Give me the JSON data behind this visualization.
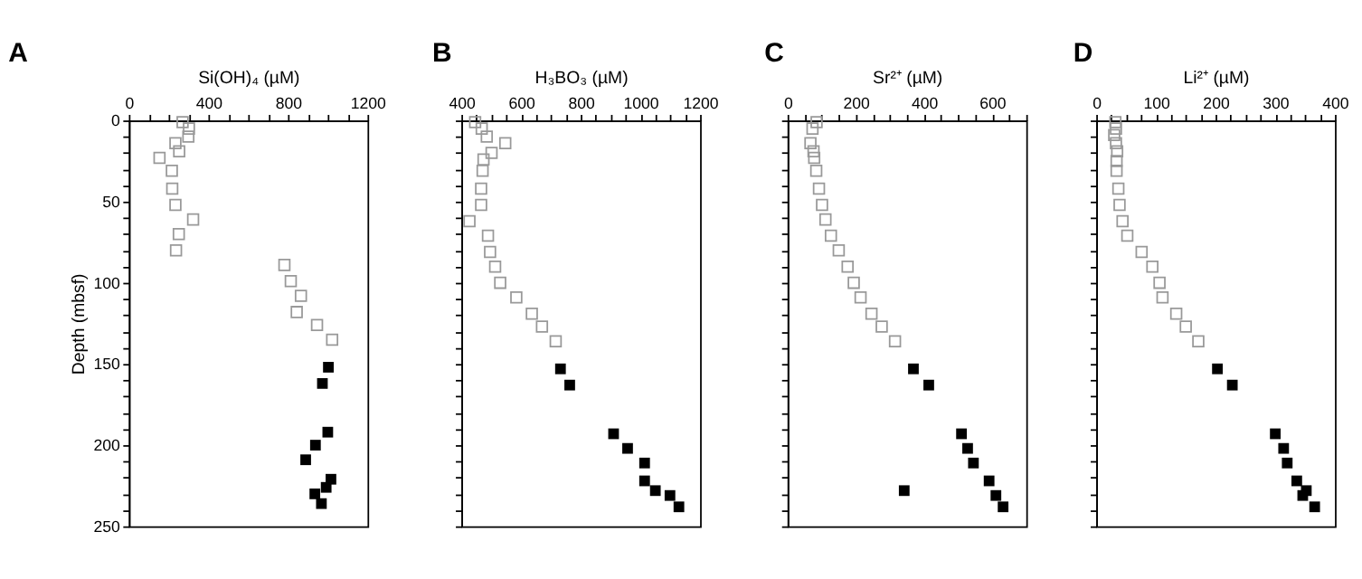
{
  "chart_data": [
    {
      "type": "scatter",
      "title": "A",
      "xlabel": "Si(OH)₄ (µM)",
      "ylabel": "Depth (mbsf)",
      "xlim": [
        0,
        1200
      ],
      "xticks": [
        0,
        {
          "value": 100,
          "label": null
        },
        {
          "value": 200,
          "label": null
        },
        {
          "value": 300,
          "label": null
        },
        400,
        {
          "value": 500,
          "label": null
        },
        {
          "value": 600,
          "label": null
        },
        {
          "value": 700,
          "label": null
        },
        800,
        {
          "value": 900,
          "label": null
        },
        {
          "value": 1000,
          "label": null
        },
        {
          "value": 1100,
          "label": null
        },
        1200
      ],
      "ylim": [
        250,
        0
      ],
      "yticks": [
        0,
        {
          "value": 10,
          "label": null
        },
        {
          "value": 20,
          "label": null
        },
        {
          "value": 30,
          "label": null
        },
        {
          "value": 40,
          "label": null
        },
        50,
        {
          "value": 60,
          "label": null
        },
        {
          "value": 70,
          "label": null
        },
        {
          "value": 80,
          "label": null
        },
        {
          "value": 90,
          "label": null
        },
        100,
        {
          "value": 110,
          "label": null
        },
        {
          "value": 120,
          "label": null
        },
        {
          "value": 130,
          "label": null
        },
        {
          "value": 140,
          "label": null
        },
        150,
        {
          "value": 160,
          "label": null
        },
        {
          "value": 170,
          "label": null
        },
        {
          "value": 180,
          "label": null
        },
        {
          "value": 190,
          "label": null
        },
        200,
        {
          "value": 210,
          "label": null
        },
        {
          "value": 220,
          "label": null
        },
        {
          "value": 230,
          "label": null
        },
        {
          "value": 240,
          "label": null
        },
        250
      ],
      "marker": "square",
      "series": [
        {
          "color": "#999999",
          "x": [
            270,
            302,
            299,
            234,
            253,
            154,
            216,
            218,
            234,
            323,
            251,
            237,
            782,
            814,
            865,
            844,
            946,
            1022
          ],
          "values": [
            1,
            5,
            10,
            14,
            19,
            23,
            31,
            42,
            52,
            61,
            70,
            80,
            89,
            99,
            108,
            118,
            126,
            135
          ]
        },
        {
          "color": "#000000",
          "x": [
            1003,
            973,
            1000,
            938,
            889,
            1016,
            992,
            935,
            968
          ],
          "values": [
            152,
            162,
            192,
            200,
            209,
            221,
            226,
            230,
            236
          ]
        }
      ]
    },
    {
      "type": "scatter",
      "title": "B",
      "xlabel": "H₃BO₃ (µM)",
      "xlim": [
        400,
        1200
      ],
      "xticks": [
        400,
        {
          "value": 450,
          "label": null
        },
        {
          "value": 500,
          "label": null
        },
        {
          "value": 550,
          "label": null
        },
        600,
        {
          "value": 650,
          "label": null
        },
        {
          "value": 700,
          "label": null
        },
        {
          "value": 750,
          "label": null
        },
        800,
        {
          "value": 850,
          "label": null
        },
        {
          "value": 900,
          "label": null
        },
        {
          "value": 950,
          "label": null
        },
        1000,
        {
          "value": 1050,
          "label": null
        },
        {
          "value": 1100,
          "label": null
        },
        {
          "value": 1150,
          "label": null
        },
        1200
      ],
      "ylim": [
        250,
        0
      ],
      "yticks": [
        0,
        {
          "value": 10,
          "label": null
        },
        {
          "value": 20,
          "label": null
        },
        {
          "value": 30,
          "label": null
        },
        {
          "value": 40,
          "label": null
        },
        50,
        {
          "value": 60,
          "label": null
        },
        {
          "value": 70,
          "label": null
        },
        {
          "value": 80,
          "label": null
        },
        {
          "value": 90,
          "label": null
        },
        100,
        {
          "value": 110,
          "label": null
        },
        {
          "value": 120,
          "label": null
        },
        {
          "value": 130,
          "label": null
        },
        {
          "value": 140,
          "label": null
        },
        150,
        {
          "value": 160,
          "label": null
        },
        {
          "value": 170,
          "label": null
        },
        {
          "value": 180,
          "label": null
        },
        {
          "value": 190,
          "label": null
        },
        200,
        {
          "value": 210,
          "label": null
        },
        {
          "value": 220,
          "label": null
        },
        {
          "value": 230,
          "label": null
        },
        {
          "value": 240,
          "label": null
        },
        250
      ],
      "tick_labels": "x",
      "marker": "square",
      "series": [
        {
          "color": "#999999",
          "x": [
            446,
            468,
            485,
            547,
            501,
            474,
            471,
            466,
            466,
            427,
            489,
            496,
            513,
            530,
            584,
            636,
            670,
            716
          ],
          "values": [
            1,
            5,
            10,
            14,
            20,
            24,
            31,
            42,
            52,
            62,
            71,
            81,
            90,
            100,
            109,
            119,
            127,
            136
          ]
        },
        {
          "color": "#000000",
          "x": [
            732,
            763,
            910,
            957,
            1014,
            1014,
            1050,
            1099,
            1129
          ],
          "values": [
            153,
            163,
            193,
            202,
            211,
            222,
            228,
            231,
            238
          ]
        }
      ]
    },
    {
      "type": "scatter",
      "title": "C",
      "xlabel": "Sr²⁺ (µM)",
      "xlim": [
        0,
        700
      ],
      "xticks": [
        0,
        {
          "value": 50,
          "label": null
        },
        {
          "value": 100,
          "label": null
        },
        {
          "value": 150,
          "label": null
        },
        200,
        {
          "value": 250,
          "label": null
        },
        {
          "value": 300,
          "label": null
        },
        {
          "value": 350,
          "label": null
        },
        400,
        {
          "value": 450,
          "label": null
        },
        {
          "value": 500,
          "label": null
        },
        {
          "value": 550,
          "label": null
        },
        600,
        {
          "value": 650,
          "label": null
        },
        {
          "value": 700,
          "label": null
        }
      ],
      "ylim": [
        250,
        0
      ],
      "yticks": [
        0,
        {
          "value": 10,
          "label": null
        },
        {
          "value": 20,
          "label": null
        },
        {
          "value": 30,
          "label": null
        },
        {
          "value": 40,
          "label": null
        },
        50,
        {
          "value": 60,
          "label": null
        },
        {
          "value": 70,
          "label": null
        },
        {
          "value": 80,
          "label": null
        },
        {
          "value": 90,
          "label": null
        },
        100,
        {
          "value": 110,
          "label": null
        },
        {
          "value": 120,
          "label": null
        },
        {
          "value": 130,
          "label": null
        },
        {
          "value": 140,
          "label": null
        },
        150,
        {
          "value": 160,
          "label": null
        },
        {
          "value": 170,
          "label": null
        },
        {
          "value": 180,
          "label": null
        },
        {
          "value": 190,
          "label": null
        },
        200,
        {
          "value": 210,
          "label": null
        },
        {
          "value": 220,
          "label": null
        },
        {
          "value": 230,
          "label": null
        },
        {
          "value": 240,
          "label": null
        },
        250
      ],
      "tick_labels": "x",
      "marker": "square",
      "series": [
        {
          "color": "#999999",
          "x": [
            85,
            73,
            67,
            76,
            78,
            84,
            92,
            101,
            111,
            127,
            150,
            176,
            194,
            214,
            246,
            276,
            315
          ],
          "values": [
            1,
            5,
            14,
            19,
            23,
            31,
            42,
            52,
            61,
            71,
            80,
            90,
            100,
            109,
            119,
            127,
            136
          ]
        },
        {
          "color": "#000000",
          "x": [
            369,
            414,
            510,
            528,
            545,
            591,
            342,
            611,
            632
          ],
          "values": [
            153,
            163,
            193,
            202,
            211,
            222,
            228,
            231,
            238
          ]
        }
      ]
    },
    {
      "type": "scatter",
      "title": "D",
      "xlabel": "Li²⁺ (µM)",
      "xlim": [
        0,
        400
      ],
      "xticks": [
        0,
        {
          "value": 25,
          "label": null
        },
        {
          "value": 50,
          "label": null
        },
        {
          "value": 75,
          "label": null
        },
        100,
        {
          "value": 125,
          "label": null
        },
        {
          "value": 150,
          "label": null
        },
        {
          "value": 175,
          "label": null
        },
        200,
        {
          "value": 225,
          "label": null
        },
        {
          "value": 250,
          "label": null
        },
        {
          "value": 275,
          "label": null
        },
        300,
        {
          "value": 325,
          "label": null
        },
        {
          "value": 350,
          "label": null
        },
        {
          "value": 375,
          "label": null
        },
        400
      ],
      "ylim": [
        250,
        0
      ],
      "yticks": [
        0,
        {
          "value": 10,
          "label": null
        },
        {
          "value": 20,
          "label": null
        },
        {
          "value": 30,
          "label": null
        },
        {
          "value": 40,
          "label": null
        },
        50,
        {
          "value": 60,
          "label": null
        },
        {
          "value": 70,
          "label": null
        },
        {
          "value": 80,
          "label": null
        },
        {
          "value": 90,
          "label": null
        },
        100,
        {
          "value": 110,
          "label": null
        },
        {
          "value": 120,
          "label": null
        },
        {
          "value": 130,
          "label": null
        },
        {
          "value": 140,
          "label": null
        },
        150,
        {
          "value": 160,
          "label": null
        },
        {
          "value": 170,
          "label": null
        },
        {
          "value": 180,
          "label": null
        },
        {
          "value": 190,
          "label": null
        },
        200,
        {
          "value": 210,
          "label": null
        },
        {
          "value": 220,
          "label": null
        },
        {
          "value": 230,
          "label": null
        },
        {
          "value": 240,
          "label": null
        },
        250
      ],
      "tick_labels": "x",
      "marker": "square",
      "series": [
        {
          "color": "#999999",
          "x": [
            32,
            33,
            30,
            33,
            35,
            34,
            34,
            37,
            39,
            44,
            52,
            76,
            94,
            106,
            111,
            134,
            150,
            171
          ],
          "values": [
            1,
            5,
            9,
            14,
            19,
            25,
            31,
            42,
            52,
            62,
            71,
            81,
            90,
            100,
            109,
            119,
            127,
            136
          ]
        },
        {
          "color": "#000000",
          "x": [
            203,
            228,
            300,
            314,
            320,
            336,
            352,
            346,
            366
          ],
          "values": [
            153,
            163,
            193,
            202,
            211,
            222,
            228,
            231,
            238
          ]
        }
      ]
    }
  ]
}
